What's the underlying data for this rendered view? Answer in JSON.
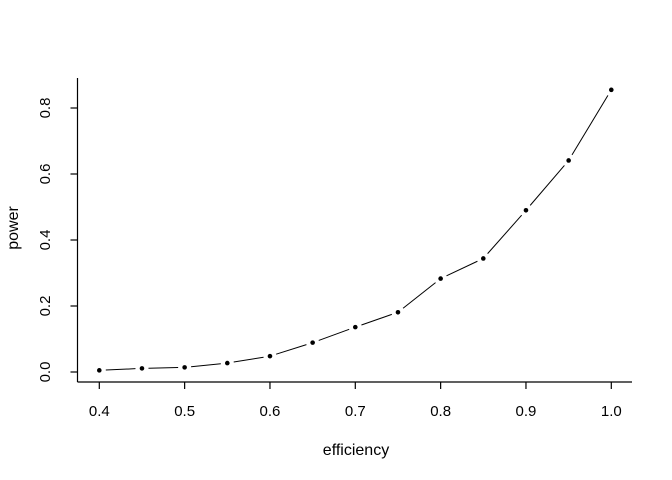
{
  "figure": {
    "background_color": "#ffffff",
    "foreground_color": "#000000"
  },
  "chart_data": {
    "type": "line",
    "title": "",
    "xlabel": "efficiency",
    "ylabel": "power",
    "x": [
      0.4,
      0.45,
      0.5,
      0.55,
      0.6,
      0.65,
      0.7,
      0.75,
      0.8,
      0.85,
      0.9,
      0.95,
      1.0
    ],
    "series": [
      {
        "name": "power",
        "values": [
          0.005,
          0.011,
          0.014,
          0.027,
          0.048,
          0.089,
          0.136,
          0.181,
          0.283,
          0.344,
          0.49,
          0.641,
          0.855
        ]
      }
    ],
    "xlim": [
      0.4,
      1.0
    ],
    "ylim": [
      0.0,
      0.8
    ],
    "x_ticks": {
      "values": [
        0.4,
        0.5,
        0.6,
        0.7,
        0.8,
        0.9,
        1.0
      ],
      "labels": [
        "0.4",
        "0.5",
        "0.6",
        "0.7",
        "0.8",
        "0.9",
        "1.0"
      ]
    },
    "y_ticks": {
      "values": [
        0.0,
        0.2,
        0.4,
        0.6,
        0.8
      ],
      "labels": [
        "0.0",
        "0.2",
        "0.4",
        "0.6",
        "0.8"
      ]
    },
    "grid": false,
    "legend": "none",
    "style": {
      "marker": "filled-circle",
      "marker_color": "#000000",
      "line_style": "solid-with-point-gaps",
      "line_color": "#000000",
      "axes_shown": [
        "left",
        "bottom"
      ],
      "y_tick_label_rotation_deg": -90
    }
  }
}
